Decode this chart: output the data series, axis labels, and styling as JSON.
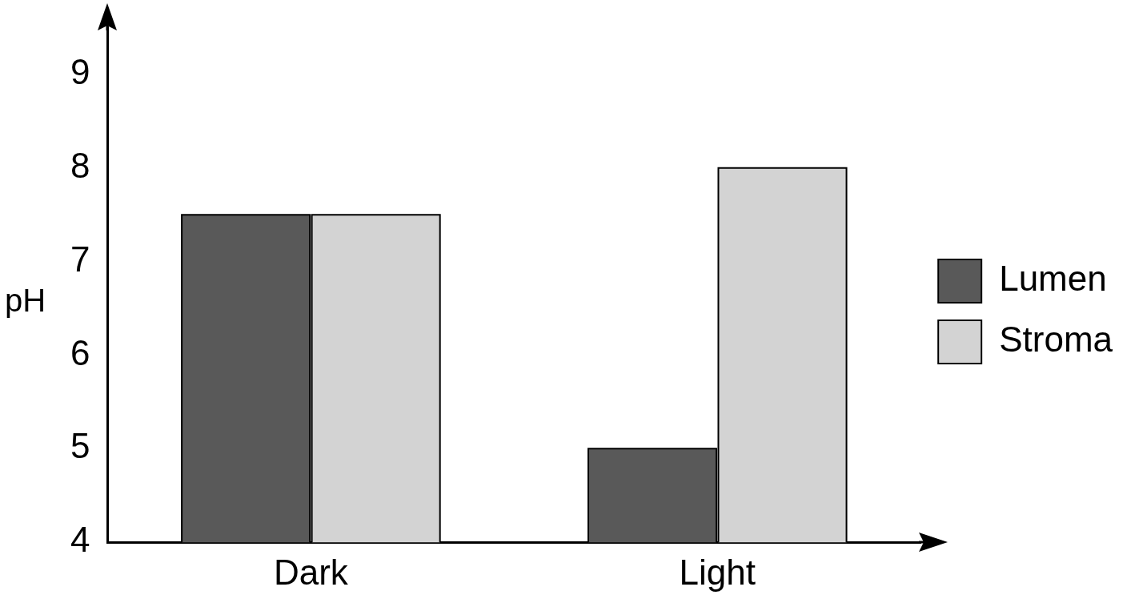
{
  "chart_data": {
    "type": "bar",
    "ylabel": "pH",
    "categories": [
      "Dark",
      "Light"
    ],
    "series": [
      {
        "name": "Lumen",
        "color": "#595959",
        "values": [
          7.5,
          5
        ]
      },
      {
        "name": "Stroma",
        "color": "#d3d3d3",
        "values": [
          7.5,
          8
        ]
      }
    ],
    "ylim": [
      4,
      9.5
    ],
    "yticks": [
      4,
      5,
      6,
      7,
      8,
      9
    ],
    "grid": false,
    "legend": "right"
  }
}
